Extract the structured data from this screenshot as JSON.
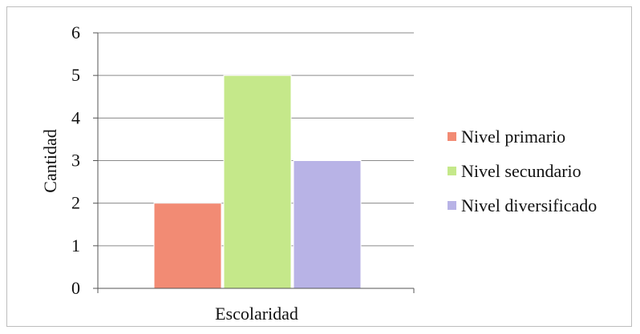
{
  "chart_data": {
    "type": "bar",
    "categories": [
      "Escolaridad"
    ],
    "series": [
      {
        "name": "Nivel primario",
        "values": [
          2
        ],
        "color": "#f28b74"
      },
      {
        "name": "Nivel secundario",
        "values": [
          5
        ],
        "color": "#c5e88a"
      },
      {
        "name": "Nivel diversificado",
        "values": [
          3
        ],
        "color": "#b8b3e6"
      }
    ],
    "xlabel": "Escolaridad",
    "ylabel": "Cantidad",
    "ylim": [
      0,
      6
    ],
    "yticks": [
      "0",
      "1",
      "2",
      "3",
      "4",
      "5",
      "6"
    ],
    "grid": true,
    "legend_position": "right"
  }
}
